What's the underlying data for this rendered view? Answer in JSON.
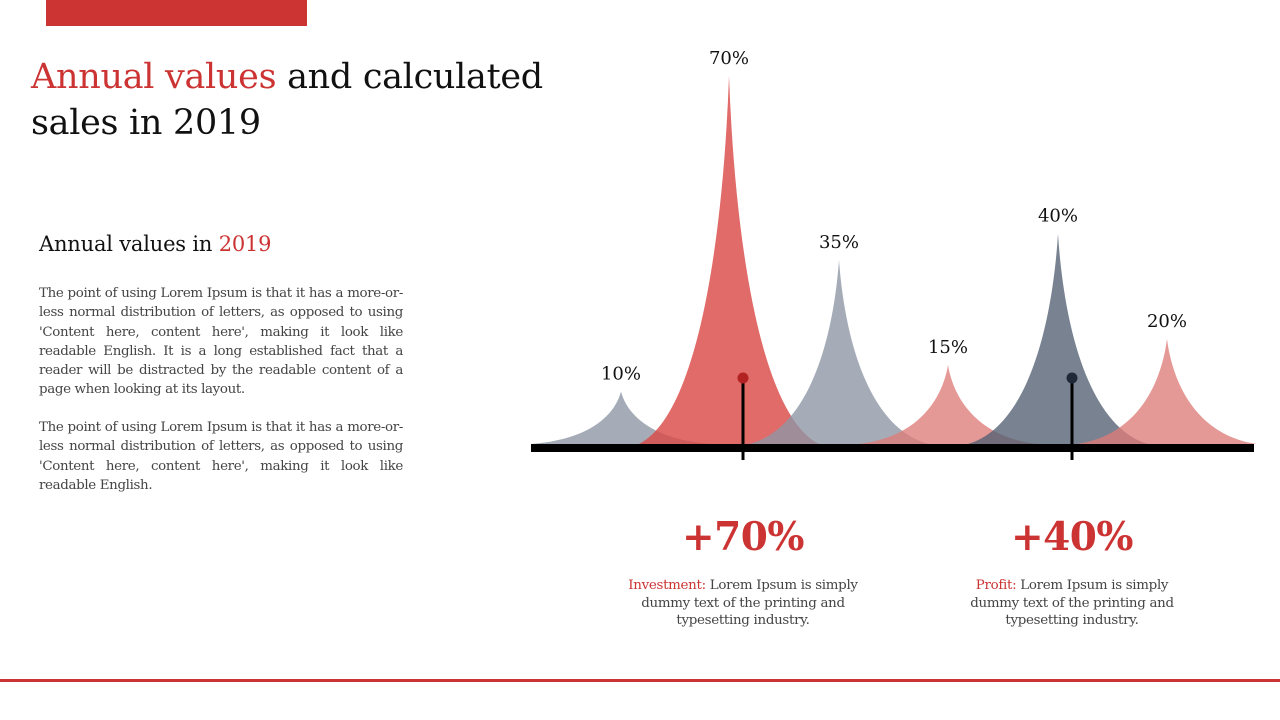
{
  "colors": {
    "accent": "#cc3333",
    "slate": "#525f72",
    "red_peak": "#d94a47",
    "pink_peak": "#de7c79",
    "gray_peak": "#8e97a6",
    "baseline": "#000000"
  },
  "title": {
    "highlight": "Annual values",
    "rest": "and calculated sales in 2019"
  },
  "subtitle": {
    "prefix": "Annual values in",
    "year": "2019"
  },
  "paragraphs": [
    "The point of using Lorem Ipsum is that it has a more-or-less normal distribution of letters, as opposed to using 'Content here, content here', making it look like readable English. It is a long established fact that a reader will be distracted by the readable content of a page when looking at its layout.",
    "The point of using Lorem Ipsum is that it has a more-or-less normal distribution of letters, as opposed to using 'Content here, content here', making it look like readable English."
  ],
  "chart_data": {
    "type": "area",
    "title": "Annual values and calculated sales in 2019",
    "categories": [
      "10%",
      "70%",
      "35%",
      "15%",
      "40%",
      "20%"
    ],
    "values": [
      10,
      70,
      35,
      15,
      40,
      20
    ],
    "series_colors": [
      "gray",
      "red",
      "gray",
      "pink",
      "slate",
      "pink"
    ],
    "ylim": [
      0,
      70
    ],
    "grid": false,
    "legend": "none",
    "annotations": [
      {
        "value": "+70%",
        "label": "Investment:",
        "text": "Lorem Ipsum is simply dummy text of the printing and typesetting industry.",
        "marker_color": "red",
        "target": "70%"
      },
      {
        "value": "+40%",
        "label": "Profit:",
        "text": "Lorem Ipsum is simply dummy text of the printing and typesetting industry.",
        "marker_color": "slate",
        "target": "40%"
      }
    ]
  }
}
